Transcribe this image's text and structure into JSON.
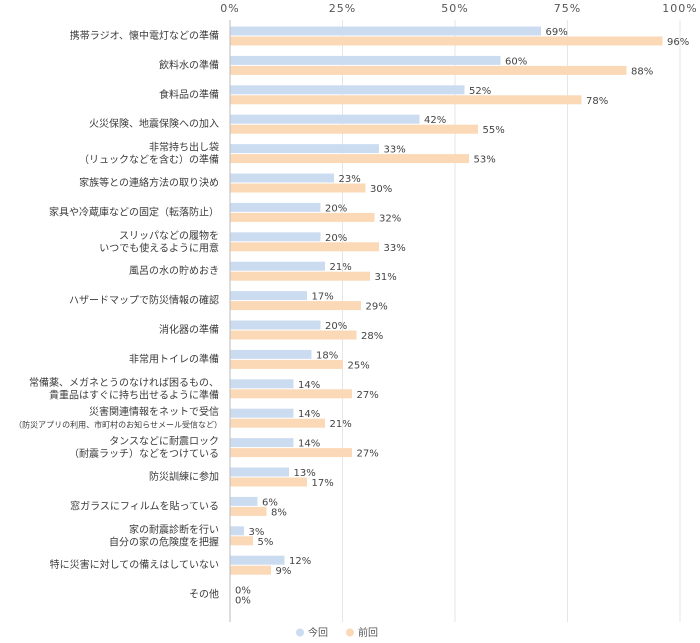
{
  "chart_data": {
    "type": "bar",
    "orientation": "horizontal",
    "xlim": [
      0,
      100
    ],
    "ticks": [
      "0%",
      "25%",
      "50%",
      "75%",
      "100%"
    ],
    "tick_values": [
      0,
      25,
      50,
      75,
      100
    ],
    "colors": {
      "current": "#ccdcf0",
      "previous": "#fbd8b6",
      "axis": "#bbbbbb"
    },
    "legend": {
      "position": "bottom",
      "entries": [
        "今回",
        "前回"
      ]
    },
    "categories": [
      [
        "携帯ラジオ、懐中電灯などの準備"
      ],
      [
        "飲料水の準備"
      ],
      [
        "食料品の準備"
      ],
      [
        "火災保険、地震保険への加入"
      ],
      [
        "非常持ち出し袋",
        "（リュックなどを含む）の準備"
      ],
      [
        "家族等との連絡方法の取り決め"
      ],
      [
        "家具や冷蔵庫などの固定（転落防止）"
      ],
      [
        "スリッパなどの履物を",
        "いつでも使えるように用意"
      ],
      [
        "風呂の水の貯めおき"
      ],
      [
        "ハザードマップで防災情報の確認"
      ],
      [
        "消化器の準備"
      ],
      [
        "非常用トイレの準備"
      ],
      [
        "常備薬、メガネとうのなければ困るもの、",
        "貴重品はすぐに持ち出せるように準備"
      ],
      [
        "災害関連情報をネットで受信",
        "（防災アプリの利用、市町村のお知らせメール受信など）"
      ],
      [
        "タンスなどに耐震ロック",
        "（耐震ラッチ）などをつけている"
      ],
      [
        "防災訓練に参加"
      ],
      [
        "窓ガラスにフィルムを貼っている"
      ],
      [
        "家の耐震診断を行い",
        "自分の家の危険度を把握"
      ],
      [
        "特に災害に対しての備えはしていない"
      ],
      [
        "その他"
      ]
    ],
    "series": [
      {
        "name": "今回",
        "values": [
          69,
          60,
          52,
          42,
          33,
          23,
          20,
          20,
          21,
          17,
          20,
          18,
          14,
          14,
          14,
          13,
          6,
          3,
          12,
          0
        ]
      },
      {
        "name": "前回",
        "values": [
          96,
          88,
          78,
          55,
          53,
          30,
          32,
          33,
          31,
          29,
          28,
          25,
          27,
          21,
          27,
          17,
          8,
          5,
          9,
          0
        ]
      }
    ]
  }
}
